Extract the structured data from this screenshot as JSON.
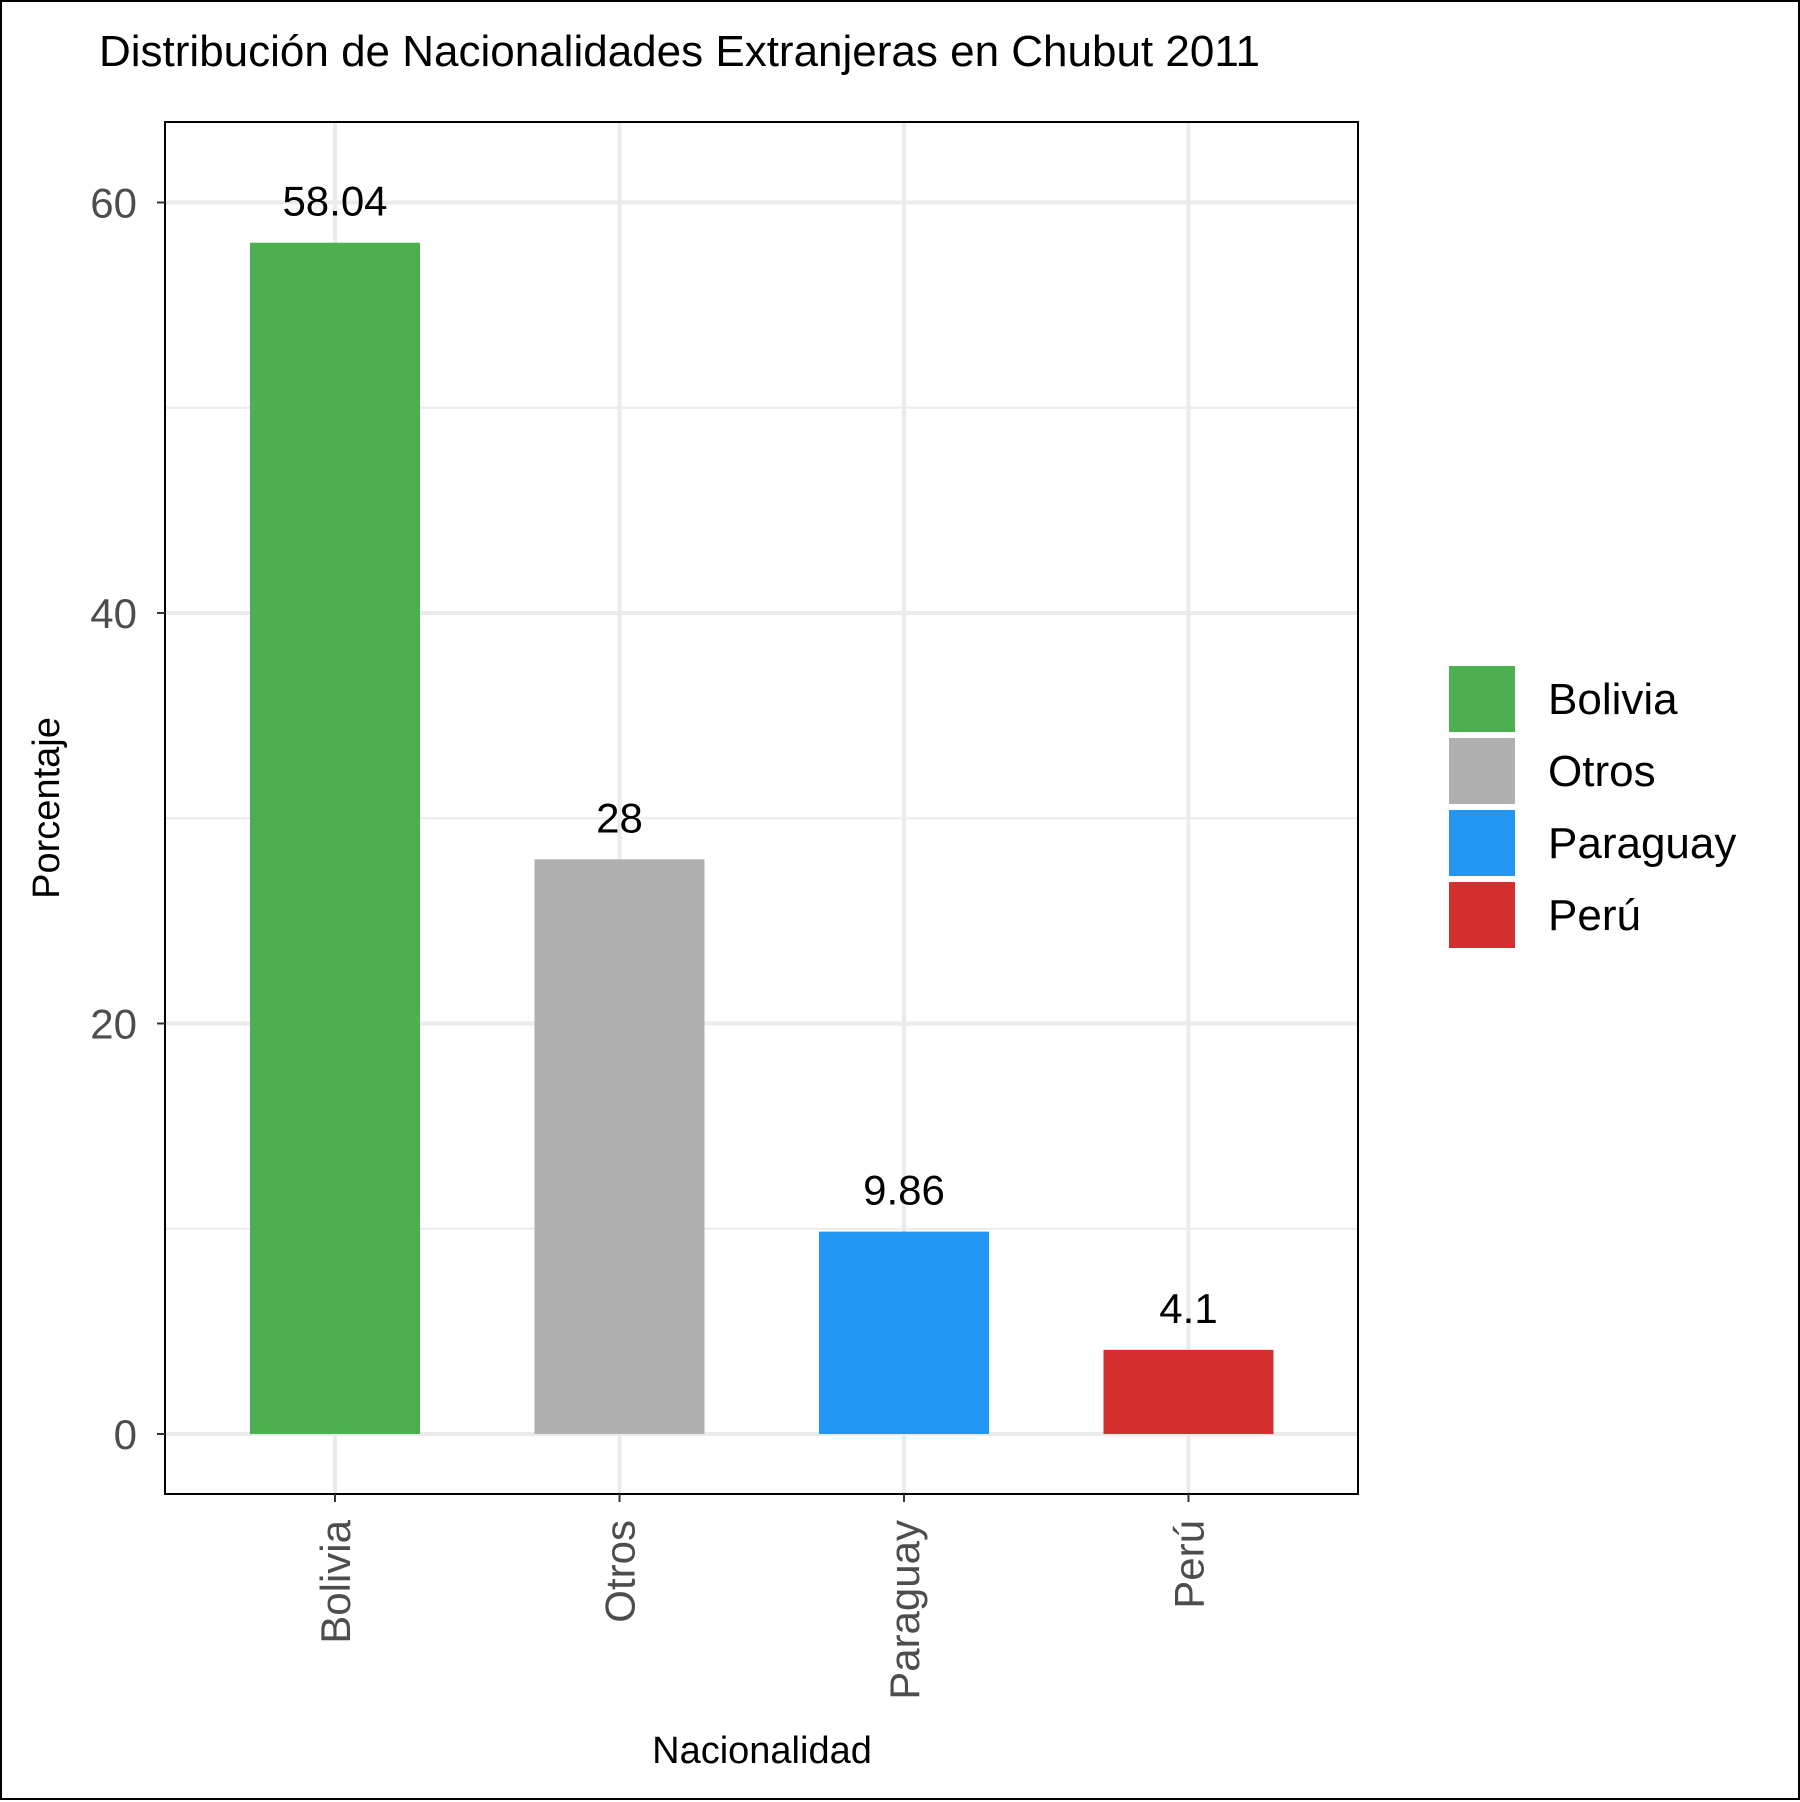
{
  "chart_data": {
    "type": "bar",
    "title": "Distribución de Nacionalidades Extranjeras en Chubut 2011",
    "xlabel": "Nacionalidad",
    "ylabel": "Porcentaje",
    "categories": [
      "Bolivia",
      "Otros",
      "Paraguay",
      "Perú"
    ],
    "values": [
      58.04,
      28,
      9.86,
      4.1
    ],
    "value_labels": [
      "58.04",
      "28",
      "9.86",
      "4.1"
    ],
    "colors": [
      "#4caf50",
      "#b0b0b0",
      "#2196f3",
      "#d32f2f"
    ],
    "ylim": [
      -3,
      64
    ],
    "y_ticks": [
      0,
      20,
      40,
      60
    ],
    "y_minor_ticks": [
      10,
      30,
      50
    ],
    "grid": true,
    "legend": {
      "position": "right",
      "entries": [
        "Bolivia",
        "Otros",
        "Paraguay",
        "Perú"
      ]
    }
  }
}
